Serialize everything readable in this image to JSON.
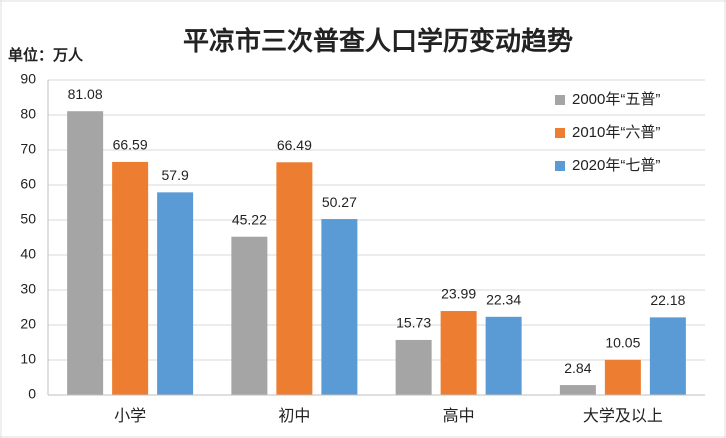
{
  "chart_data": {
    "type": "bar",
    "title": "平凉市三次普查人口学历变动趋势",
    "unit": "单位：万人",
    "categories": [
      "小学",
      "初中",
      "高中",
      "大学及以上"
    ],
    "series": [
      {
        "name": "2000年“五普”",
        "color": "#a5a5a5",
        "values": [
          81.08,
          45.22,
          15.73,
          2.84
        ]
      },
      {
        "name": "2010年“六普”",
        "color": "#ed7d31",
        "values": [
          66.59,
          66.49,
          23.99,
          10.05
        ]
      },
      {
        "name": "2020年“七普”",
        "color": "#5b9bd5",
        "values": [
          57.9,
          50.27,
          22.34,
          22.18
        ]
      }
    ],
    "ylim": [
      0,
      90
    ],
    "yticks": [
      0,
      10,
      20,
      30,
      40,
      50,
      60,
      70,
      80,
      90
    ],
    "grid": true,
    "legend": "top-right"
  }
}
